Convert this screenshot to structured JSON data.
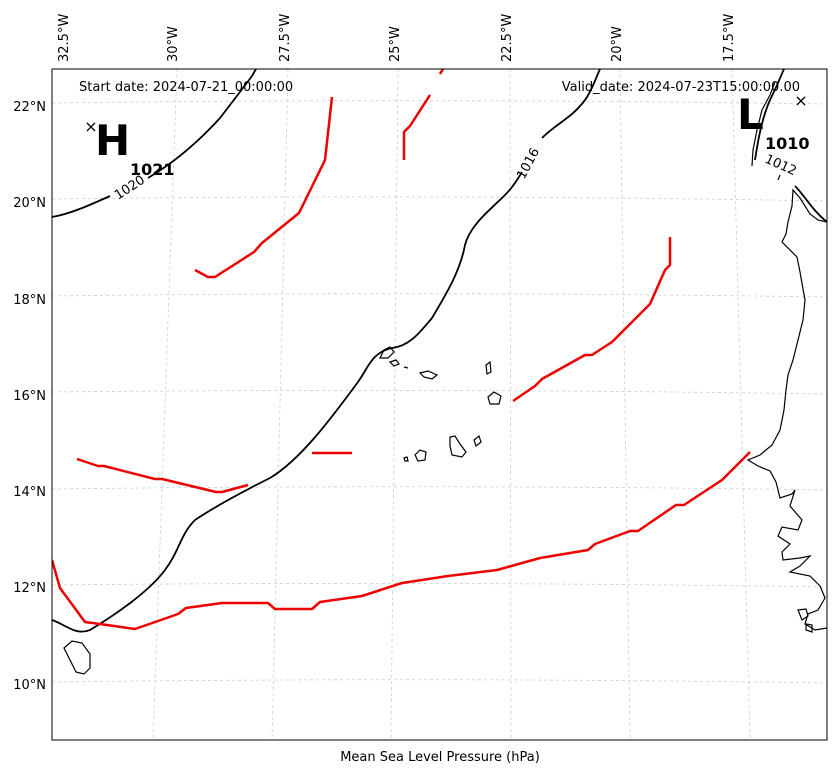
{
  "map": {
    "start_date": "Start date: 2024-07-21_00:00:00",
    "valid_date": "Valid_date: 2024-07-23T15:00:00.00",
    "caption": "Mean Sea Level Pressure (hPa)",
    "lon_labels": [
      "32.5°W",
      "30°W",
      "27.5°W",
      "25°W",
      "22.5°W",
      "20°W",
      "17.5°W"
    ],
    "lat_labels": [
      "22°N",
      "20°N",
      "18°N",
      "16°N",
      "14°N",
      "12°N",
      "10°N"
    ],
    "isobar_labels": [
      "1020",
      "1016",
      "1012"
    ],
    "centers": {
      "high": {
        "letter": "H",
        "value": "1021"
      },
      "low": {
        "letter": "L",
        "value": "1010"
      }
    },
    "colors": {
      "isobar": "#000000",
      "trough": "#ee0000",
      "grid": "#cccccc",
      "coast": "#000000"
    }
  }
}
